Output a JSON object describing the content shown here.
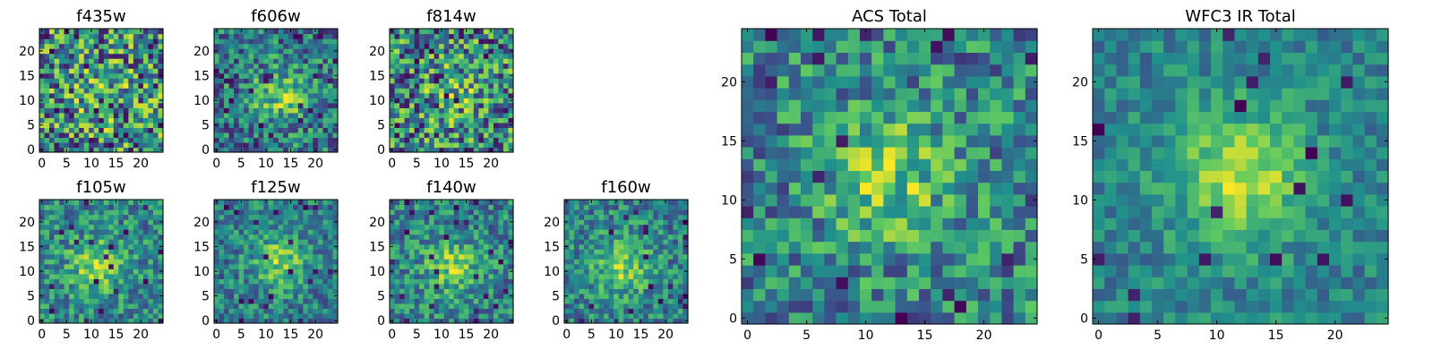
{
  "chart_data": [
    {
      "type": "heatmap",
      "title": "f435w",
      "xticks": [
        "0",
        "5",
        "10",
        "15",
        "20"
      ],
      "yticks": [
        "0",
        "5",
        "10",
        "15",
        "20"
      ],
      "xlim": [
        -0.5,
        24.5
      ],
      "ylim": [
        -0.5,
        24.5
      ],
      "peak": [
        12,
        12
      ],
      "peak_strength": 0.15,
      "noise": 0.5,
      "seed": 11
    },
    {
      "type": "heatmap",
      "title": "f606w",
      "xticks": [
        "0",
        "5",
        "10",
        "15",
        "20"
      ],
      "yticks": [
        "0",
        "5",
        "10",
        "15",
        "20"
      ],
      "xlim": [
        -0.5,
        24.5
      ],
      "ylim": [
        -0.5,
        24.5
      ],
      "peak": [
        13,
        11
      ],
      "peak_strength": 0.45,
      "noise": 0.4,
      "seed": 23
    },
    {
      "type": "heatmap",
      "title": "f814w",
      "xticks": [
        "0",
        "5",
        "10",
        "15",
        "20"
      ],
      "yticks": [
        "0",
        "5",
        "10",
        "15",
        "20"
      ],
      "xlim": [
        -0.5,
        24.5
      ],
      "ylim": [
        -0.5,
        24.5
      ],
      "peak": [
        12,
        12
      ],
      "peak_strength": 0.2,
      "noise": 0.5,
      "seed": 37
    },
    {
      "type": "heatmap",
      "title": "f105w",
      "xticks": [
        "0",
        "5",
        "10",
        "15",
        "20"
      ],
      "yticks": [
        "0",
        "5",
        "10",
        "15",
        "20"
      ],
      "xlim": [
        -0.5,
        24.5
      ],
      "ylim": [
        -0.5,
        24.5
      ],
      "peak": [
        11,
        11
      ],
      "peak_strength": 0.4,
      "noise": 0.3,
      "seed": 41
    },
    {
      "type": "heatmap",
      "title": "f125w",
      "xticks": [
        "0",
        "5",
        "10",
        "15",
        "20"
      ],
      "yticks": [
        "0",
        "5",
        "10",
        "15",
        "20"
      ],
      "xlim": [
        -0.5,
        24.5
      ],
      "ylim": [
        -0.5,
        24.5
      ],
      "peak": [
        13,
        12
      ],
      "peak_strength": 0.45,
      "noise": 0.3,
      "seed": 53
    },
    {
      "type": "heatmap",
      "title": "f140w",
      "xticks": [
        "0",
        "5",
        "10",
        "15",
        "20"
      ],
      "yticks": [
        "0",
        "5",
        "10",
        "15",
        "20"
      ],
      "xlim": [
        -0.5,
        24.5
      ],
      "ylim": [
        -0.5,
        24.5
      ],
      "peak": [
        12,
        11
      ],
      "peak_strength": 0.4,
      "noise": 0.3,
      "seed": 67
    },
    {
      "type": "heatmap",
      "title": "f160w",
      "xticks": [
        "0",
        "5",
        "10",
        "15",
        "20"
      ],
      "yticks": [
        "0",
        "5",
        "10",
        "15",
        "20"
      ],
      "xlim": [
        -0.5,
        24.5
      ],
      "ylim": [
        -0.5,
        24.5
      ],
      "peak": [
        11,
        11
      ],
      "peak_strength": 0.45,
      "noise": 0.3,
      "seed": 79
    },
    {
      "type": "heatmap",
      "title": "ACS Total",
      "xticks": [
        "0",
        "5",
        "10",
        "15",
        "20"
      ],
      "yticks": [
        "0",
        "5",
        "10",
        "15",
        "20"
      ],
      "xlim": [
        -0.5,
        24.5
      ],
      "ylim": [
        -0.5,
        24.5
      ],
      "peak": [
        12,
        12
      ],
      "peak_strength": 0.4,
      "noise": 0.35,
      "seed": 97
    },
    {
      "type": "heatmap",
      "title": "WFC3 IR Total",
      "xticks": [
        "0",
        "5",
        "10",
        "15",
        "20"
      ],
      "yticks": [
        "0",
        "5",
        "10",
        "15",
        "20"
      ],
      "xlim": [
        -0.5,
        24.5
      ],
      "ylim": [
        -0.5,
        24.5
      ],
      "peak": [
        12,
        12
      ],
      "peak_strength": 0.55,
      "noise": 0.2,
      "seed": 103
    }
  ],
  "colormap": [
    "#440154",
    "#3b528b",
    "#21918c",
    "#5ec962",
    "#fde725"
  ]
}
